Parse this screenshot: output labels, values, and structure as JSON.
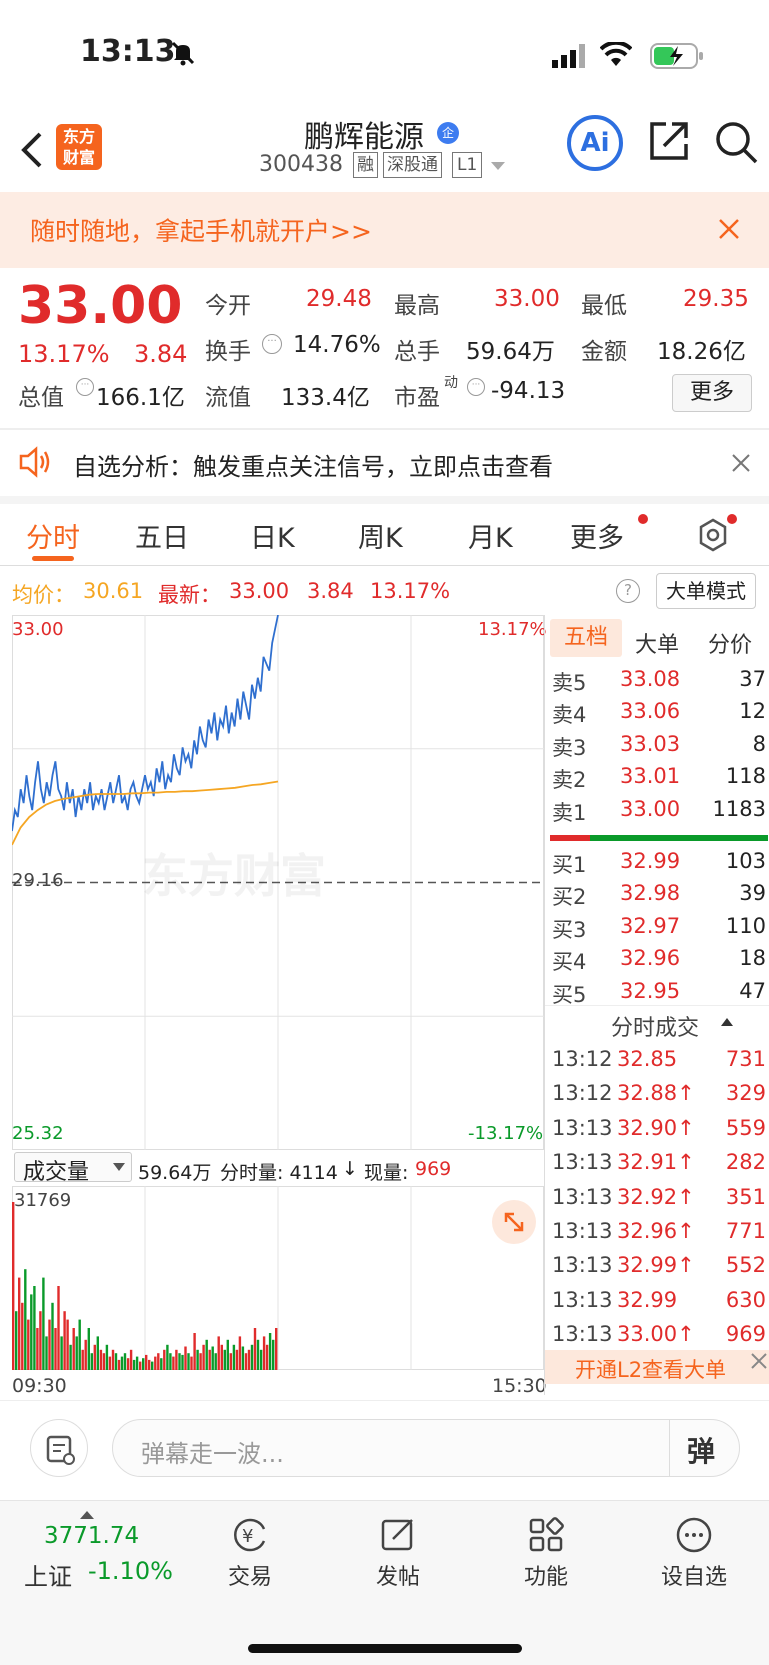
{
  "status": {
    "time": "13:13"
  },
  "header": {
    "logo_line1": "东方",
    "logo_line2": "财富",
    "name": "鹏辉能源",
    "badge": "企",
    "code": "300438",
    "tags": [
      "融",
      "深股通",
      "L1"
    ],
    "ai": "Ai"
  },
  "banner": {
    "text": "随时随地，拿起手机就开户>>"
  },
  "quote": {
    "price": "33.00",
    "pct": "13.17%",
    "chg": "3.84",
    "fields": [
      {
        "label": "今开",
        "value": "29.48",
        "red": true
      },
      {
        "label": "最高",
        "value": "33.00",
        "red": true
      },
      {
        "label": "最低",
        "value": "29.35",
        "red": true
      },
      {
        "label": "换手",
        "value": "14.76%",
        "red": false
      },
      {
        "label": "总手",
        "value": "59.64万",
        "red": false
      },
      {
        "label": "金额",
        "value": "18.26亿",
        "red": false
      },
      {
        "label": "总值",
        "value": "166.1亿",
        "red": false
      },
      {
        "label": "流值",
        "value": "133.4亿",
        "red": false
      },
      {
        "label": "市盈",
        "value": "-94.13",
        "red": false
      }
    ],
    "pe_sup": "动",
    "more": "更多"
  },
  "notice": {
    "text": "自选分析：触发重点关注信号，立即点击查看"
  },
  "tabs": [
    "分时",
    "五日",
    "日K",
    "周K",
    "月K",
    "更多"
  ],
  "info_bar": {
    "avg_label": "均价：",
    "avg": "30.61",
    "latest_label": "最新：",
    "latest": "33.00",
    "chg": "3.84",
    "pct": "13.17%",
    "mode": "大单模式"
  },
  "chart_data": {
    "type": "line",
    "ylim": [
      25.32,
      33.0
    ],
    "y_top": "33.00",
    "y_bottom": "25.32",
    "pct_top": "13.17%",
    "pct_bottom": "-13.17%",
    "prev_close": "29.16",
    "series": [
      {
        "values": [
          29.9,
          30.2,
          30.1,
          30.5,
          30.3,
          30.7,
          30.4,
          30.2,
          30.6,
          30.9,
          30.5,
          30.3,
          30.6,
          30.4,
          30.7,
          30.9,
          30.5,
          30.4,
          30.2,
          30.6,
          30.3,
          30.5,
          30.1,
          30.4,
          30.2,
          30.5,
          30.3,
          30.6,
          30.2,
          30.4,
          30.3,
          30.5,
          30.2,
          30.4,
          30.6,
          30.3,
          30.5,
          30.7,
          30.3,
          30.4,
          30.2,
          30.5,
          30.6,
          30.4,
          30.3,
          30.5,
          30.7,
          30.5,
          30.6,
          30.4,
          30.8,
          30.6,
          30.9,
          30.5,
          30.7,
          30.6,
          31.0,
          30.8,
          30.7,
          31.1,
          30.9,
          31.0,
          30.8,
          31.2,
          31.0,
          31.4,
          31.2,
          31.1,
          31.5,
          31.3,
          31.6,
          31.2,
          31.5,
          31.4,
          31.7,
          31.3,
          31.6,
          31.4,
          31.8,
          31.5,
          31.9,
          31.7,
          31.5,
          32.0,
          31.8,
          32.1,
          31.9,
          32.4,
          32.3,
          32.2,
          32.6,
          32.8,
          33.0
        ]
      },
      {
        "values": [
          29.7,
          29.95,
          30.1,
          30.2,
          30.28,
          30.33,
          30.36,
          30.38,
          30.4,
          30.42,
          30.43,
          30.43,
          30.43,
          30.43,
          30.44,
          30.44,
          30.45,
          30.45,
          30.46,
          30.46,
          30.47,
          30.47,
          30.48,
          30.49,
          30.5,
          30.51,
          30.52,
          30.54,
          30.56,
          30.57,
          30.59,
          30.61
        ]
      }
    ],
    "volume": {
      "max_label": "31769",
      "total": "59.64万",
      "period": "分时量: 4114",
      "now_label": "现量:",
      "now": "969",
      "select": "成交量"
    },
    "time_start": "09:30",
    "time_end": "15:30"
  },
  "order_book": {
    "tabs": [
      "五档",
      "大单",
      "分价"
    ],
    "asks": [
      [
        "卖5",
        "33.08",
        "37"
      ],
      [
        "卖4",
        "33.06",
        "12"
      ],
      [
        "卖3",
        "33.03",
        "8"
      ],
      [
        "卖2",
        "33.01",
        "118"
      ],
      [
        "卖1",
        "33.00",
        "1183"
      ]
    ],
    "bids": [
      [
        "买1",
        "32.99",
        "103"
      ],
      [
        "买2",
        "32.98",
        "39"
      ],
      [
        "买3",
        "32.97",
        "110"
      ],
      [
        "买4",
        "32.96",
        "18"
      ],
      [
        "买5",
        "32.95",
        "47"
      ]
    ],
    "trades_title": "分时成交",
    "trades": [
      [
        "13:12",
        "32.85",
        "731"
      ],
      [
        "13:12",
        "32.88↑",
        "329"
      ],
      [
        "13:13",
        "32.90↑",
        "559"
      ],
      [
        "13:13",
        "32.91↑",
        "282"
      ],
      [
        "13:13",
        "32.92↑",
        "351"
      ],
      [
        "13:13",
        "32.96↑",
        "771"
      ],
      [
        "13:13",
        "32.99↑",
        "552"
      ],
      [
        "13:13",
        "32.99",
        "630"
      ],
      [
        "13:13",
        "33.00↑",
        "969"
      ]
    ],
    "l2": "开通L2查看大单"
  },
  "comment": {
    "placeholder": "弹幕走一波...",
    "btn": "弹"
  },
  "bottom": {
    "index_value": "3771.74",
    "index_name": "上证",
    "index_pct": "-1.10%",
    "items": [
      "交易",
      "发帖",
      "功能",
      "设自选"
    ]
  },
  "colors": {
    "up": "#e02b2b",
    "down": "#0a9a2a",
    "accent": "#f5641e",
    "avg": "#f5a623",
    "price_line": "#2f6fcf"
  }
}
